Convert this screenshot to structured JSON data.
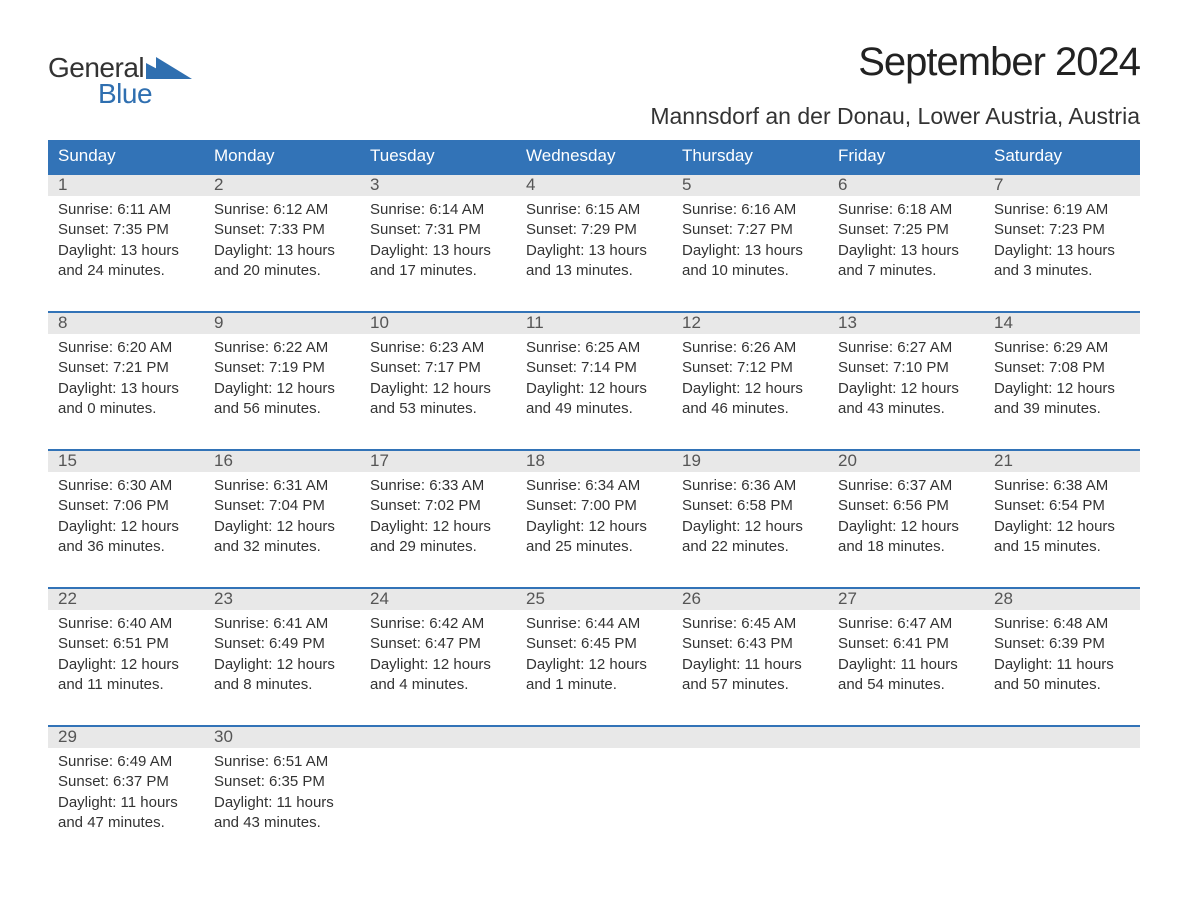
{
  "brand": {
    "word1": "General",
    "word2": "Blue",
    "word1_color": "#333333",
    "word2_color": "#2f6fb0",
    "triangle_color": "#2f6fb0",
    "font_size_pt": 21
  },
  "title": {
    "month_year": "September 2024",
    "location": "Mannsdorf an der Donau, Lower Austria, Austria",
    "month_fontsize_pt": 30,
    "location_fontsize_pt": 17,
    "text_color": "#222222"
  },
  "colors": {
    "header_bg": "#3273b7",
    "header_text": "#ffffff",
    "day_number_bg": "#e8e8e8",
    "day_border_top": "#3273b7",
    "body_text": "#333333",
    "background": "#ffffff"
  },
  "layout": {
    "columns": 7,
    "rows": 5,
    "cell_body_fontsize_pt": 11,
    "day_header_fontsize_pt": 13
  },
  "day_headers": [
    "Sunday",
    "Monday",
    "Tuesday",
    "Wednesday",
    "Thursday",
    "Friday",
    "Saturday"
  ],
  "days": [
    {
      "n": "1",
      "sunrise": "Sunrise: 6:11 AM",
      "sunset": "Sunset: 7:35 PM",
      "daylight": "Daylight: 13 hours and 24 minutes."
    },
    {
      "n": "2",
      "sunrise": "Sunrise: 6:12 AM",
      "sunset": "Sunset: 7:33 PM",
      "daylight": "Daylight: 13 hours and 20 minutes."
    },
    {
      "n": "3",
      "sunrise": "Sunrise: 6:14 AM",
      "sunset": "Sunset: 7:31 PM",
      "daylight": "Daylight: 13 hours and 17 minutes."
    },
    {
      "n": "4",
      "sunrise": "Sunrise: 6:15 AM",
      "sunset": "Sunset: 7:29 PM",
      "daylight": "Daylight: 13 hours and 13 minutes."
    },
    {
      "n": "5",
      "sunrise": "Sunrise: 6:16 AM",
      "sunset": "Sunset: 7:27 PM",
      "daylight": "Daylight: 13 hours and 10 minutes."
    },
    {
      "n": "6",
      "sunrise": "Sunrise: 6:18 AM",
      "sunset": "Sunset: 7:25 PM",
      "daylight": "Daylight: 13 hours and 7 minutes."
    },
    {
      "n": "7",
      "sunrise": "Sunrise: 6:19 AM",
      "sunset": "Sunset: 7:23 PM",
      "daylight": "Daylight: 13 hours and 3 minutes."
    },
    {
      "n": "8",
      "sunrise": "Sunrise: 6:20 AM",
      "sunset": "Sunset: 7:21 PM",
      "daylight": "Daylight: 13 hours and 0 minutes."
    },
    {
      "n": "9",
      "sunrise": "Sunrise: 6:22 AM",
      "sunset": "Sunset: 7:19 PM",
      "daylight": "Daylight: 12 hours and 56 minutes."
    },
    {
      "n": "10",
      "sunrise": "Sunrise: 6:23 AM",
      "sunset": "Sunset: 7:17 PM",
      "daylight": "Daylight: 12 hours and 53 minutes."
    },
    {
      "n": "11",
      "sunrise": "Sunrise: 6:25 AM",
      "sunset": "Sunset: 7:14 PM",
      "daylight": "Daylight: 12 hours and 49 minutes."
    },
    {
      "n": "12",
      "sunrise": "Sunrise: 6:26 AM",
      "sunset": "Sunset: 7:12 PM",
      "daylight": "Daylight: 12 hours and 46 minutes."
    },
    {
      "n": "13",
      "sunrise": "Sunrise: 6:27 AM",
      "sunset": "Sunset: 7:10 PM",
      "daylight": "Daylight: 12 hours and 43 minutes."
    },
    {
      "n": "14",
      "sunrise": "Sunrise: 6:29 AM",
      "sunset": "Sunset: 7:08 PM",
      "daylight": "Daylight: 12 hours and 39 minutes."
    },
    {
      "n": "15",
      "sunrise": "Sunrise: 6:30 AM",
      "sunset": "Sunset: 7:06 PM",
      "daylight": "Daylight: 12 hours and 36 minutes."
    },
    {
      "n": "16",
      "sunrise": "Sunrise: 6:31 AM",
      "sunset": "Sunset: 7:04 PM",
      "daylight": "Daylight: 12 hours and 32 minutes."
    },
    {
      "n": "17",
      "sunrise": "Sunrise: 6:33 AM",
      "sunset": "Sunset: 7:02 PM",
      "daylight": "Daylight: 12 hours and 29 minutes."
    },
    {
      "n": "18",
      "sunrise": "Sunrise: 6:34 AM",
      "sunset": "Sunset: 7:00 PM",
      "daylight": "Daylight: 12 hours and 25 minutes."
    },
    {
      "n": "19",
      "sunrise": "Sunrise: 6:36 AM",
      "sunset": "Sunset: 6:58 PM",
      "daylight": "Daylight: 12 hours and 22 minutes."
    },
    {
      "n": "20",
      "sunrise": "Sunrise: 6:37 AM",
      "sunset": "Sunset: 6:56 PM",
      "daylight": "Daylight: 12 hours and 18 minutes."
    },
    {
      "n": "21",
      "sunrise": "Sunrise: 6:38 AM",
      "sunset": "Sunset: 6:54 PM",
      "daylight": "Daylight: 12 hours and 15 minutes."
    },
    {
      "n": "22",
      "sunrise": "Sunrise: 6:40 AM",
      "sunset": "Sunset: 6:51 PM",
      "daylight": "Daylight: 12 hours and 11 minutes."
    },
    {
      "n": "23",
      "sunrise": "Sunrise: 6:41 AM",
      "sunset": "Sunset: 6:49 PM",
      "daylight": "Daylight: 12 hours and 8 minutes."
    },
    {
      "n": "24",
      "sunrise": "Sunrise: 6:42 AM",
      "sunset": "Sunset: 6:47 PM",
      "daylight": "Daylight: 12 hours and 4 minutes."
    },
    {
      "n": "25",
      "sunrise": "Sunrise: 6:44 AM",
      "sunset": "Sunset: 6:45 PM",
      "daylight": "Daylight: 12 hours and 1 minute."
    },
    {
      "n": "26",
      "sunrise": "Sunrise: 6:45 AM",
      "sunset": "Sunset: 6:43 PM",
      "daylight": "Daylight: 11 hours and 57 minutes."
    },
    {
      "n": "27",
      "sunrise": "Sunrise: 6:47 AM",
      "sunset": "Sunset: 6:41 PM",
      "daylight": "Daylight: 11 hours and 54 minutes."
    },
    {
      "n": "28",
      "sunrise": "Sunrise: 6:48 AM",
      "sunset": "Sunset: 6:39 PM",
      "daylight": "Daylight: 11 hours and 50 minutes."
    },
    {
      "n": "29",
      "sunrise": "Sunrise: 6:49 AM",
      "sunset": "Sunset: 6:37 PM",
      "daylight": "Daylight: 11 hours and 47 minutes."
    },
    {
      "n": "30",
      "sunrise": "Sunrise: 6:51 AM",
      "sunset": "Sunset: 6:35 PM",
      "daylight": "Daylight: 11 hours and 43 minutes."
    }
  ],
  "trailing_empty_cells": 5
}
